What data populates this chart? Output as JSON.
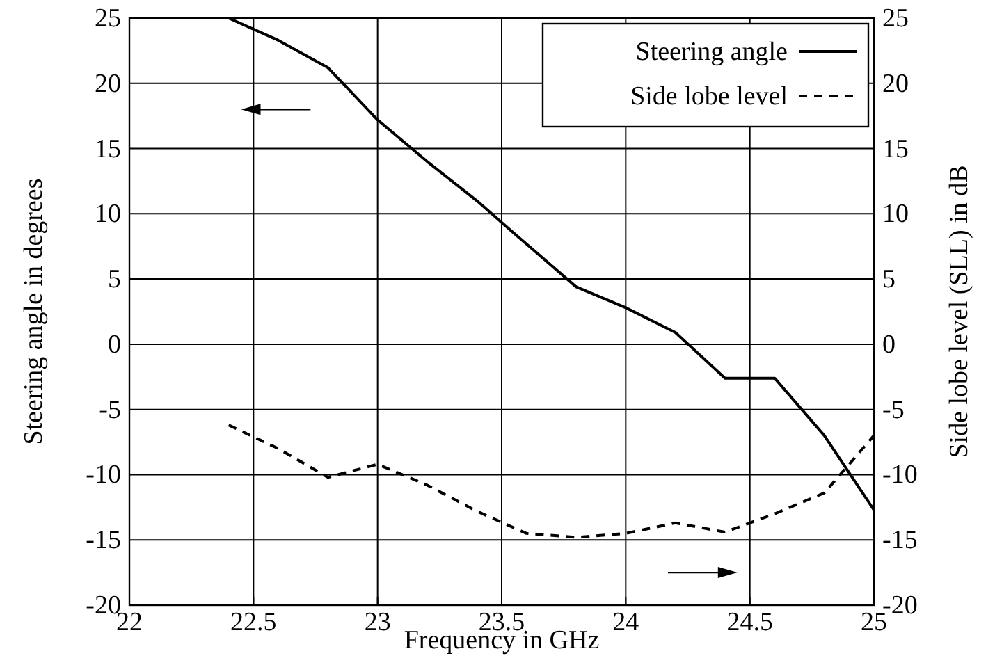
{
  "chart_data": {
    "type": "line",
    "xlabel": "Frequency in GHz",
    "ylabel": "Steering angle in degrees",
    "y2label": "Side lobe level (SLL) in dB",
    "xlim": [
      22,
      25
    ],
    "xticks": [
      22,
      22.5,
      23,
      23.5,
      24,
      24.5,
      25
    ],
    "ylim": [
      -20,
      25
    ],
    "yticks": [
      -20,
      -15,
      -10,
      -5,
      0,
      5,
      10,
      15,
      20,
      25
    ],
    "y2lim": [
      -20,
      25
    ],
    "y2ticks": [
      -20,
      -15,
      -10,
      -5,
      0,
      5,
      10,
      15,
      20,
      25
    ],
    "grid": true,
    "legend": "top right",
    "series": [
      {
        "name": "Steering angle",
        "color": "#000000",
        "line_style": "solid",
        "x": [
          22.4,
          22.6,
          22.8,
          23,
          23.2,
          23.4,
          23.55,
          23.8,
          24,
          24.2,
          24.4,
          24.6,
          24.8,
          25
        ],
        "values": [
          25,
          23.3,
          21.2,
          17.2,
          14,
          11,
          8.5,
          4.4,
          2.8,
          0.9,
          -2.6,
          -2.6,
          -7,
          -12.7
        ]
      },
      {
        "name": "Side lobe level",
        "color": "#000000",
        "line_style": "dashed",
        "x": [
          22.4,
          22.6,
          22.8,
          23,
          23.2,
          23.4,
          23.6,
          23.8,
          24,
          24.2,
          24.4,
          24.6,
          24.8,
          25
        ],
        "values": [
          -6.2,
          -8,
          -10.2,
          -9.2,
          -10.8,
          -12.8,
          -14.5,
          -14.8,
          -14.5,
          -13.7,
          -14.4,
          -13,
          -11.4,
          -7
        ]
      }
    ]
  }
}
